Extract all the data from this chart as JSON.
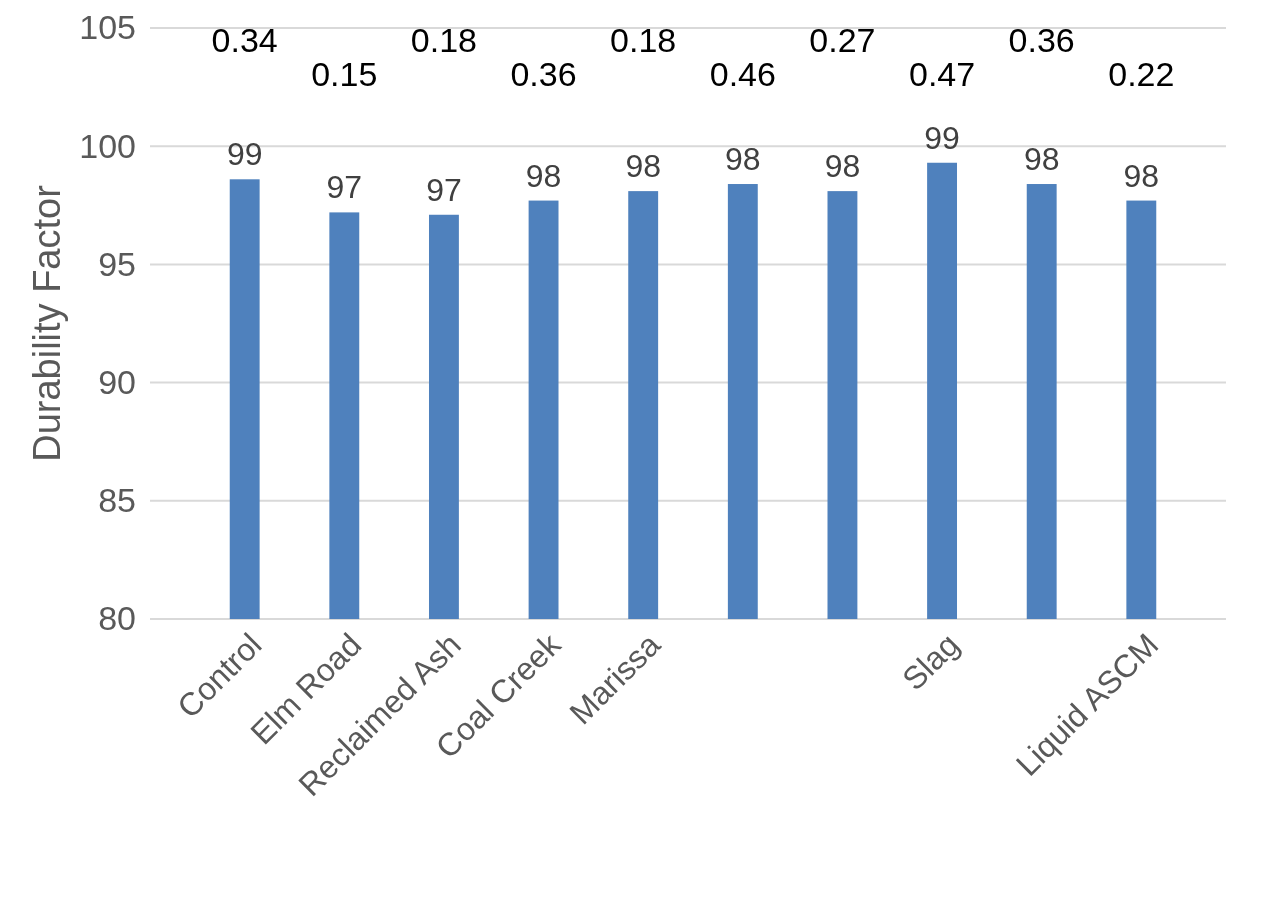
{
  "chart_data": {
    "type": "bar",
    "ylabel": "Durability Factor",
    "categories": [
      "Control",
      "Elm Road",
      "Reclaimed Ash",
      "Coal Creek",
      "Marissa",
      null,
      null,
      "Slag",
      null,
      "Liquid ASCM"
    ],
    "values": [
      98.6,
      97.2,
      97.1,
      97.7,
      98.1,
      98.4,
      98.1,
      99.3,
      98.4,
      97.7
    ],
    "value_labels": [
      "99",
      "97",
      "97",
      "98",
      "98",
      "98",
      "98",
      "99",
      "98",
      "98"
    ],
    "color": "#4f81bd",
    "ylim": [
      80,
      105
    ],
    "yticks": [
      80,
      85,
      90,
      95,
      100,
      105
    ],
    "grid": "y",
    "annotations": [
      "0.34",
      "0.15",
      "0.18",
      "0.36",
      "0.18",
      "0.46",
      "0.27",
      "0.47",
      "0.36",
      "0.22"
    ]
  }
}
